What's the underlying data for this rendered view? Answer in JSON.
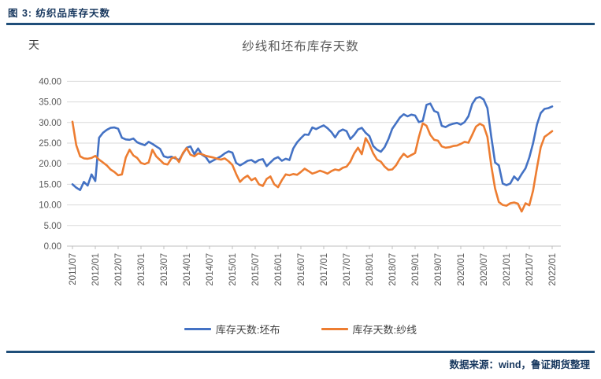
{
  "figure_caption": "图 3: 纺织品库存天数",
  "footer": {
    "source_text": "数据来源：wind，鲁证期货整理"
  },
  "accent_color": "#1F4E79",
  "chart_data": {
    "type": "line",
    "title": "纱线和坯布库存天数",
    "unit_label": "天",
    "ylim": [
      0,
      40
    ],
    "y_ticks": [
      "0.00",
      "5.00",
      "10.00",
      "15.00",
      "20.00",
      "25.00",
      "30.00",
      "35.00",
      "40.00"
    ],
    "x_tick_labels": [
      "2011/07",
      "2012/01",
      "2012/07",
      "2013/01",
      "2013/07",
      "2014/01",
      "2014/07",
      "2015/01",
      "2015/07",
      "2016/01",
      "2016/07",
      "2017/01",
      "2017/07",
      "2018/01",
      "2018/07",
      "2019/01",
      "2019/07",
      "2020/01",
      "2020/07",
      "2021/01",
      "2021/07",
      "2022/01"
    ],
    "x_start": "2011/07",
    "x_interval": "monthly",
    "grid": true,
    "legend_position": "bottom",
    "series": [
      {
        "name": "库存天数:坯布",
        "color": "#4472C4",
        "values": [
          15.0,
          14.2,
          13.6,
          15.6,
          14.7,
          17.4,
          15.8,
          26.3,
          27.5,
          28.2,
          28.7,
          28.8,
          28.5,
          26.3,
          25.9,
          25.8,
          26.1,
          25.2,
          24.8,
          24.5,
          25.3,
          24.8,
          24.2,
          23.6,
          21.8,
          21.5,
          21.7,
          21.3,
          20.9,
          22.4,
          23.9,
          24.2,
          22.3,
          23.7,
          22.2,
          21.6,
          20.3,
          20.8,
          21.3,
          21.8,
          22.5,
          23.0,
          22.7,
          20.2,
          19.6,
          20.1,
          20.7,
          20.9,
          20.3,
          20.9,
          21.1,
          19.4,
          20.3,
          21.2,
          21.6,
          20.7,
          21.2,
          20.9,
          23.7,
          25.2,
          26.2,
          27.1,
          27.0,
          28.8,
          28.4,
          28.9,
          29.3,
          28.6,
          27.7,
          26.4,
          27.8,
          28.3,
          27.9,
          26.0,
          27.0,
          28.3,
          28.7,
          27.5,
          26.7,
          24.3,
          23.4,
          22.9,
          24.0,
          26.0,
          28.5,
          29.8,
          31.2,
          32.0,
          31.5,
          31.9,
          31.7,
          30.1,
          30.4,
          34.3,
          34.6,
          32.8,
          32.4,
          29.2,
          28.9,
          29.4,
          29.7,
          29.9,
          29.5,
          30.1,
          31.5,
          34.5,
          35.9,
          36.2,
          35.6,
          33.5,
          26.5,
          20.3,
          19.6,
          15.2,
          14.8,
          15.2,
          16.9,
          16.0,
          17.5,
          18.9,
          21.5,
          25.0,
          29.5,
          32.3,
          33.3,
          33.5,
          33.9
        ]
      },
      {
        "name": "库存天数:纱线",
        "color": "#ED7D31",
        "values": [
          30.2,
          24.5,
          21.8,
          21.3,
          21.2,
          21.4,
          21.9,
          21.0,
          20.3,
          19.6,
          18.6,
          18.0,
          17.2,
          17.4,
          21.5,
          23.4,
          22.0,
          21.4,
          20.2,
          19.9,
          20.3,
          23.4,
          21.8,
          20.9,
          20.0,
          19.8,
          21.3,
          21.6,
          20.4,
          22.6,
          23.8,
          22.2,
          21.8,
          22.5,
          22.3,
          21.9,
          21.7,
          21.5,
          21.2,
          21.0,
          21.3,
          20.6,
          19.7,
          17.5,
          15.6,
          16.5,
          17.1,
          16.0,
          16.5,
          15.0,
          14.6,
          16.3,
          16.9,
          15.0,
          14.3,
          16.0,
          17.4,
          17.2,
          17.5,
          17.3,
          18.0,
          18.8,
          18.2,
          17.6,
          17.9,
          18.3,
          18.0,
          17.6,
          18.2,
          18.6,
          18.4,
          19.0,
          19.3,
          20.5,
          22.5,
          23.9,
          22.3,
          26.2,
          24.7,
          22.5,
          21.0,
          20.5,
          19.3,
          18.5,
          18.6,
          19.6,
          21.2,
          22.4,
          21.6,
          22.1,
          22.6,
          26.5,
          29.8,
          29.2,
          27.0,
          25.8,
          25.6,
          24.2,
          23.9,
          24.0,
          24.3,
          24.4,
          24.8,
          25.3,
          25.1,
          27.0,
          29.0,
          29.7,
          29.2,
          26.5,
          19.5,
          14.0,
          10.7,
          10.0,
          9.8,
          10.4,
          10.6,
          10.3,
          8.4,
          10.4,
          9.9,
          13.5,
          19.0,
          24.0,
          26.5,
          27.2,
          27.9
        ]
      }
    ]
  }
}
